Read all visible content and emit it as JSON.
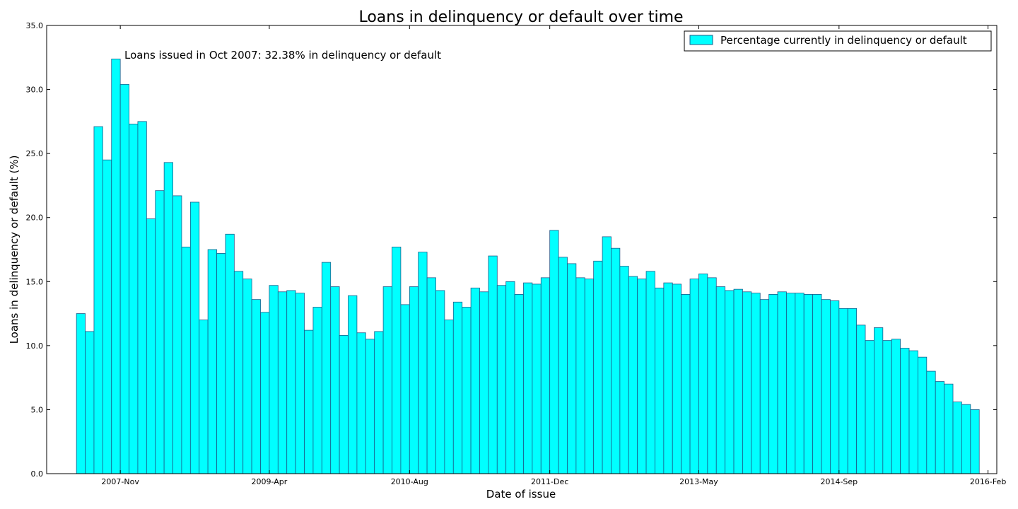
{
  "chart_data": {
    "type": "bar",
    "title": "Loans in delinquency or default over time",
    "xlabel": "Date of issue",
    "ylabel": "Loans in delinquency or default (%)",
    "ylim": [
      0,
      35
    ],
    "yticks": [
      "0.0",
      "5.0",
      "10.0",
      "15.0",
      "20.0",
      "25.0",
      "30.0",
      "35.0"
    ],
    "x_axis": {
      "start": "2007-06",
      "end": "2016-02",
      "ticks": [
        {
          "date": "2007-11",
          "label": "2007-Nov"
        },
        {
          "date": "2009-04",
          "label": "2009-Apr"
        },
        {
          "date": "2010-08",
          "label": "2010-Aug"
        },
        {
          "date": "2011-12",
          "label": "2011-Dec"
        },
        {
          "date": "2013-05",
          "label": "2013-May"
        },
        {
          "date": "2014-09",
          "label": "2014-Sep"
        },
        {
          "date": "2016-02",
          "label": "2016-Feb"
        }
      ]
    },
    "grid": false,
    "legend_position": "top-right",
    "series": [
      {
        "name": "Percentage currently in delinquency or default",
        "color": "#00ffff",
        "edge_color": "#1a5c8a",
        "x": [
          "2007-06",
          "2007-07",
          "2007-08",
          "2007-09",
          "2007-10",
          "2007-11",
          "2007-12",
          "2008-01",
          "2008-02",
          "2008-03",
          "2008-04",
          "2008-05",
          "2008-06",
          "2008-07",
          "2008-08",
          "2008-09",
          "2008-10",
          "2008-11",
          "2008-12",
          "2009-01",
          "2009-02",
          "2009-03",
          "2009-04",
          "2009-05",
          "2009-06",
          "2009-07",
          "2009-08",
          "2009-09",
          "2009-10",
          "2009-11",
          "2009-12",
          "2010-01",
          "2010-02",
          "2010-03",
          "2010-04",
          "2010-05",
          "2010-06",
          "2010-07",
          "2010-08",
          "2010-09",
          "2010-10",
          "2010-11",
          "2010-12",
          "2011-01",
          "2011-02",
          "2011-03",
          "2011-04",
          "2011-05",
          "2011-06",
          "2011-07",
          "2011-08",
          "2011-09",
          "2011-10",
          "2011-11",
          "2011-12",
          "2012-01",
          "2012-02",
          "2012-03",
          "2012-04",
          "2012-05",
          "2012-06",
          "2012-07",
          "2012-08",
          "2012-09",
          "2012-10",
          "2012-11",
          "2012-12",
          "2013-01",
          "2013-02",
          "2013-03",
          "2013-04",
          "2013-05",
          "2013-06",
          "2013-07",
          "2013-08",
          "2013-09",
          "2013-10",
          "2013-11",
          "2013-12",
          "2014-01",
          "2014-02",
          "2014-03",
          "2014-04",
          "2014-05",
          "2014-06",
          "2014-07",
          "2014-08",
          "2014-09",
          "2014-10",
          "2014-11",
          "2014-12",
          "2015-01",
          "2015-02",
          "2015-03",
          "2015-04",
          "2015-05",
          "2015-06",
          "2015-07",
          "2015-08",
          "2015-09",
          "2015-10",
          "2015-11",
          "2015-12"
        ],
        "values": [
          12.5,
          11.1,
          27.1,
          24.5,
          32.38,
          30.4,
          27.3,
          27.5,
          19.9,
          22.1,
          24.3,
          21.7,
          17.7,
          21.2,
          12.0,
          17.5,
          17.2,
          18.7,
          15.8,
          15.2,
          13.6,
          12.6,
          14.7,
          14.2,
          14.3,
          14.1,
          11.2,
          13.0,
          16.5,
          14.6,
          10.8,
          13.9,
          11.0,
          10.5,
          11.1,
          14.6,
          17.7,
          13.2,
          14.6,
          17.3,
          15.3,
          14.3,
          12.0,
          13.4,
          13.0,
          14.5,
          14.2,
          17.0,
          14.7,
          15.0,
          14.0,
          14.9,
          14.8,
          15.3,
          19.0,
          16.9,
          16.4,
          15.3,
          15.2,
          16.6,
          18.5,
          17.6,
          16.2,
          15.4,
          15.2,
          15.8,
          14.5,
          14.9,
          14.8,
          14.0,
          15.2,
          15.6,
          15.3,
          14.6,
          14.3,
          14.4,
          14.2,
          14.1,
          13.6,
          14.0,
          14.2,
          14.1,
          14.1,
          14.0,
          14.0,
          13.6,
          13.5,
          12.9,
          12.9,
          11.6,
          10.4,
          11.4,
          10.4,
          10.5,
          9.8,
          9.6,
          9.1,
          8.0,
          7.2,
          7.0,
          5.6,
          5.4,
          5.0
        ]
      }
    ],
    "annotations": [
      {
        "text": "Loans issued in Oct 2007: 32.38% in delinquency or default"
      }
    ]
  }
}
